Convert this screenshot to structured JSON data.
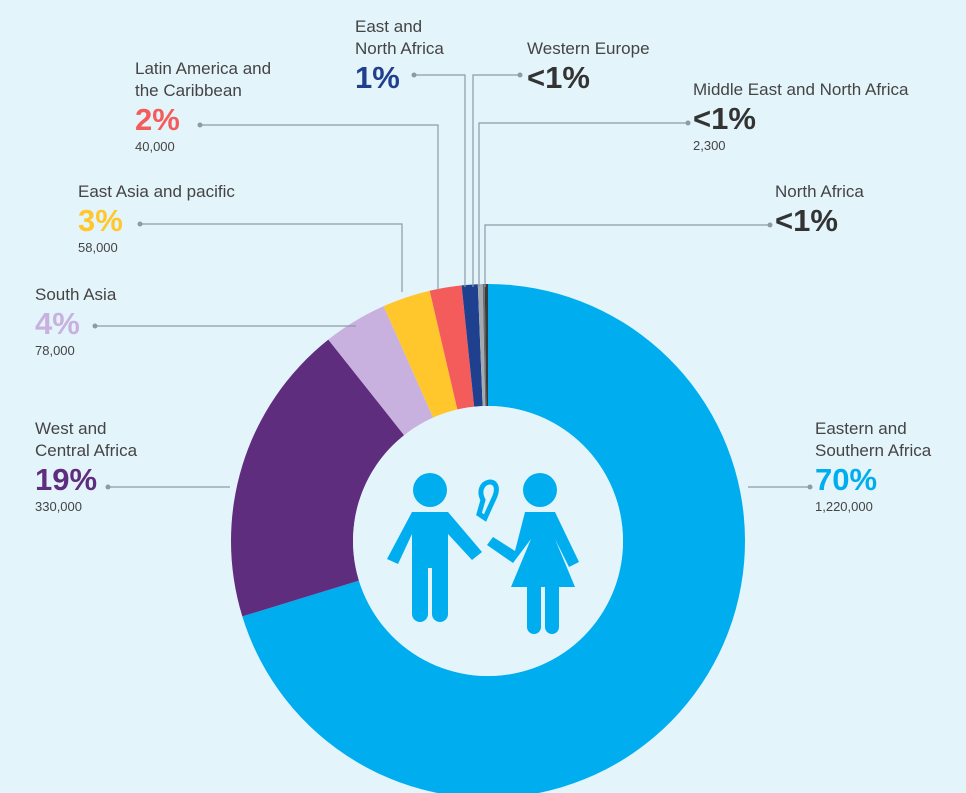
{
  "chart_data": {
    "type": "pie",
    "donut": true,
    "categories": [
      "Eastern and Southern Africa",
      "West and Central Africa",
      "South Asia",
      "East Asia and pacific",
      "Latin America and the Caribbean",
      "East and North Africa",
      "Western Europe",
      "Middle East and North Africa",
      "North Africa"
    ],
    "values": [
      70,
      19,
      4,
      3,
      2,
      1,
      0.3,
      0.13,
      0.2
    ],
    "value_labels": [
      "70%",
      "19%",
      "4%",
      "3%",
      "2%",
      "1%",
      "<1%",
      "<1%",
      "<1%"
    ],
    "counts": [
      1220000,
      330000,
      78000,
      58000,
      40000,
      null,
      null,
      2300,
      null
    ],
    "count_labels": [
      "1,220,000",
      "330,000",
      "78,000",
      "58,000",
      "40,000",
      null,
      null,
      "2,300",
      null
    ],
    "colors": [
      "#00aeef",
      "#5f2d7d",
      "#c8b1df",
      "#ffc72c",
      "#f45c5c",
      "#1f3f8f",
      "#a3aab0",
      "#6b6f73",
      "#3a3a3a"
    ],
    "label_colors": [
      "#00aeef",
      "#5f2d7d",
      "#c8b1df",
      "#ffc72c",
      "#f45c5c",
      "#1f3f8f",
      "#333333",
      "#333333",
      "#333333"
    ]
  }
}
